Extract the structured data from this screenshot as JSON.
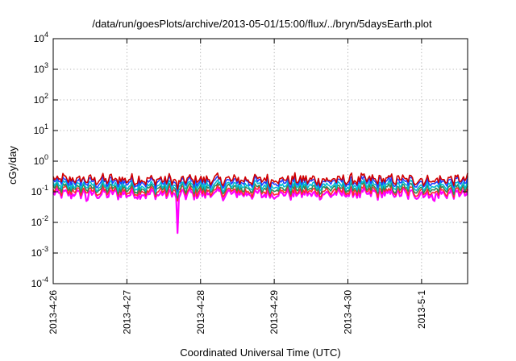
{
  "chart_data": {
    "type": "line",
    "title": "/data/run/goesPlots/archive/2013-05-01/15:00/flux/../bryn/5daysEarth.plot",
    "xlabel": "Coordinated Universal Time (UTC)",
    "ylabel": "cGy/day",
    "y_scale": "log",
    "ylim": [
      0.0001,
      10000
    ],
    "xlim": [
      "2013-04-26 00:00",
      "2013-05-01 15:00"
    ],
    "x_tick_labels": [
      "2013-4-26",
      "2013-4-27",
      "2013-4-28",
      "2013-4-29",
      "2013-4-30",
      "2013-5-1"
    ],
    "y_tick_labels": [
      {
        "base": "10",
        "exp": "-4"
      },
      {
        "base": "10",
        "exp": "-3"
      },
      {
        "base": "10",
        "exp": "-2"
      },
      {
        "base": "10",
        "exp": "-1"
      },
      {
        "base": "10",
        "exp": "0"
      },
      {
        "base": "10",
        "exp": "1"
      },
      {
        "base": "10",
        "exp": "2"
      },
      {
        "base": "10",
        "exp": "3"
      },
      {
        "base": "10",
        "exp": "4"
      }
    ],
    "grid": true,
    "series": [
      {
        "color": "#ff00ff",
        "level": 0.085
      },
      {
        "color": "#ff2a2a",
        "level": 0.105
      },
      {
        "color": "#2e8b57",
        "level": 0.13
      },
      {
        "color": "#00bcd4",
        "level": 0.16
      },
      {
        "color": "#1f3fff",
        "level": 0.21
      },
      {
        "color": "#d10000",
        "level": 0.25
      }
    ],
    "notable_dips": [
      {
        "time": "2013-04-26 11:00",
        "value": 0.035
      },
      {
        "time": "2013-04-27 16:30",
        "value": 0.0045
      },
      {
        "time": "2013-05-01 04:00",
        "value": 0.035
      }
    ]
  }
}
